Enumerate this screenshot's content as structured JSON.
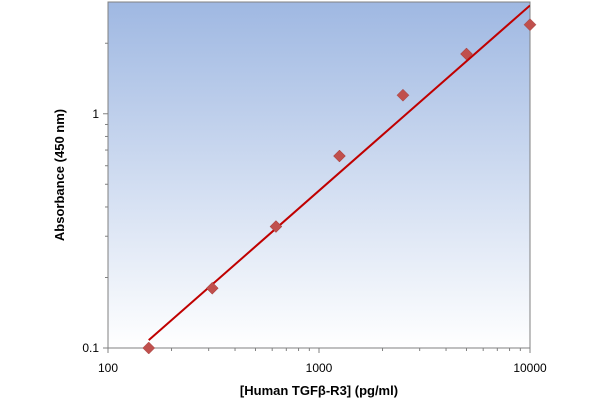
{
  "chart_data": {
    "type": "scatter",
    "title": "",
    "xlabel": "[Human TGFβ-R3] (pg/ml)",
    "ylabel": "Absorbance (450 nm)",
    "x_scale": "log",
    "y_scale": "log",
    "xlim": [
      100,
      10000
    ],
    "ylim": [
      0.1,
      3
    ],
    "x_ticks": [
      {
        "value": 100,
        "label": "100"
      },
      {
        "value": 1000,
        "label": "1000"
      },
      {
        "value": 10000,
        "label": "10000"
      }
    ],
    "y_ticks": [
      {
        "value": 0.1,
        "label": "0.1"
      },
      {
        "value": 1,
        "label": "1"
      }
    ],
    "grid": false,
    "legend": "none",
    "series": [
      {
        "marker": "diamond",
        "x": [
          156,
          312,
          625,
          1250,
          2500,
          5000,
          10000
        ],
        "y": [
          0.1,
          0.18,
          0.33,
          0.66,
          1.2,
          1.8,
          2.4
        ]
      }
    ],
    "fit_line": {
      "x": [
        156,
        10000
      ],
      "y": [
        0.108,
        2.9
      ]
    },
    "colors": {
      "marker": "#c0504d",
      "fit_line": "#c00000",
      "plot_bg_top": "#9fb8e2",
      "plot_bg_bottom": "#ffffff"
    }
  }
}
